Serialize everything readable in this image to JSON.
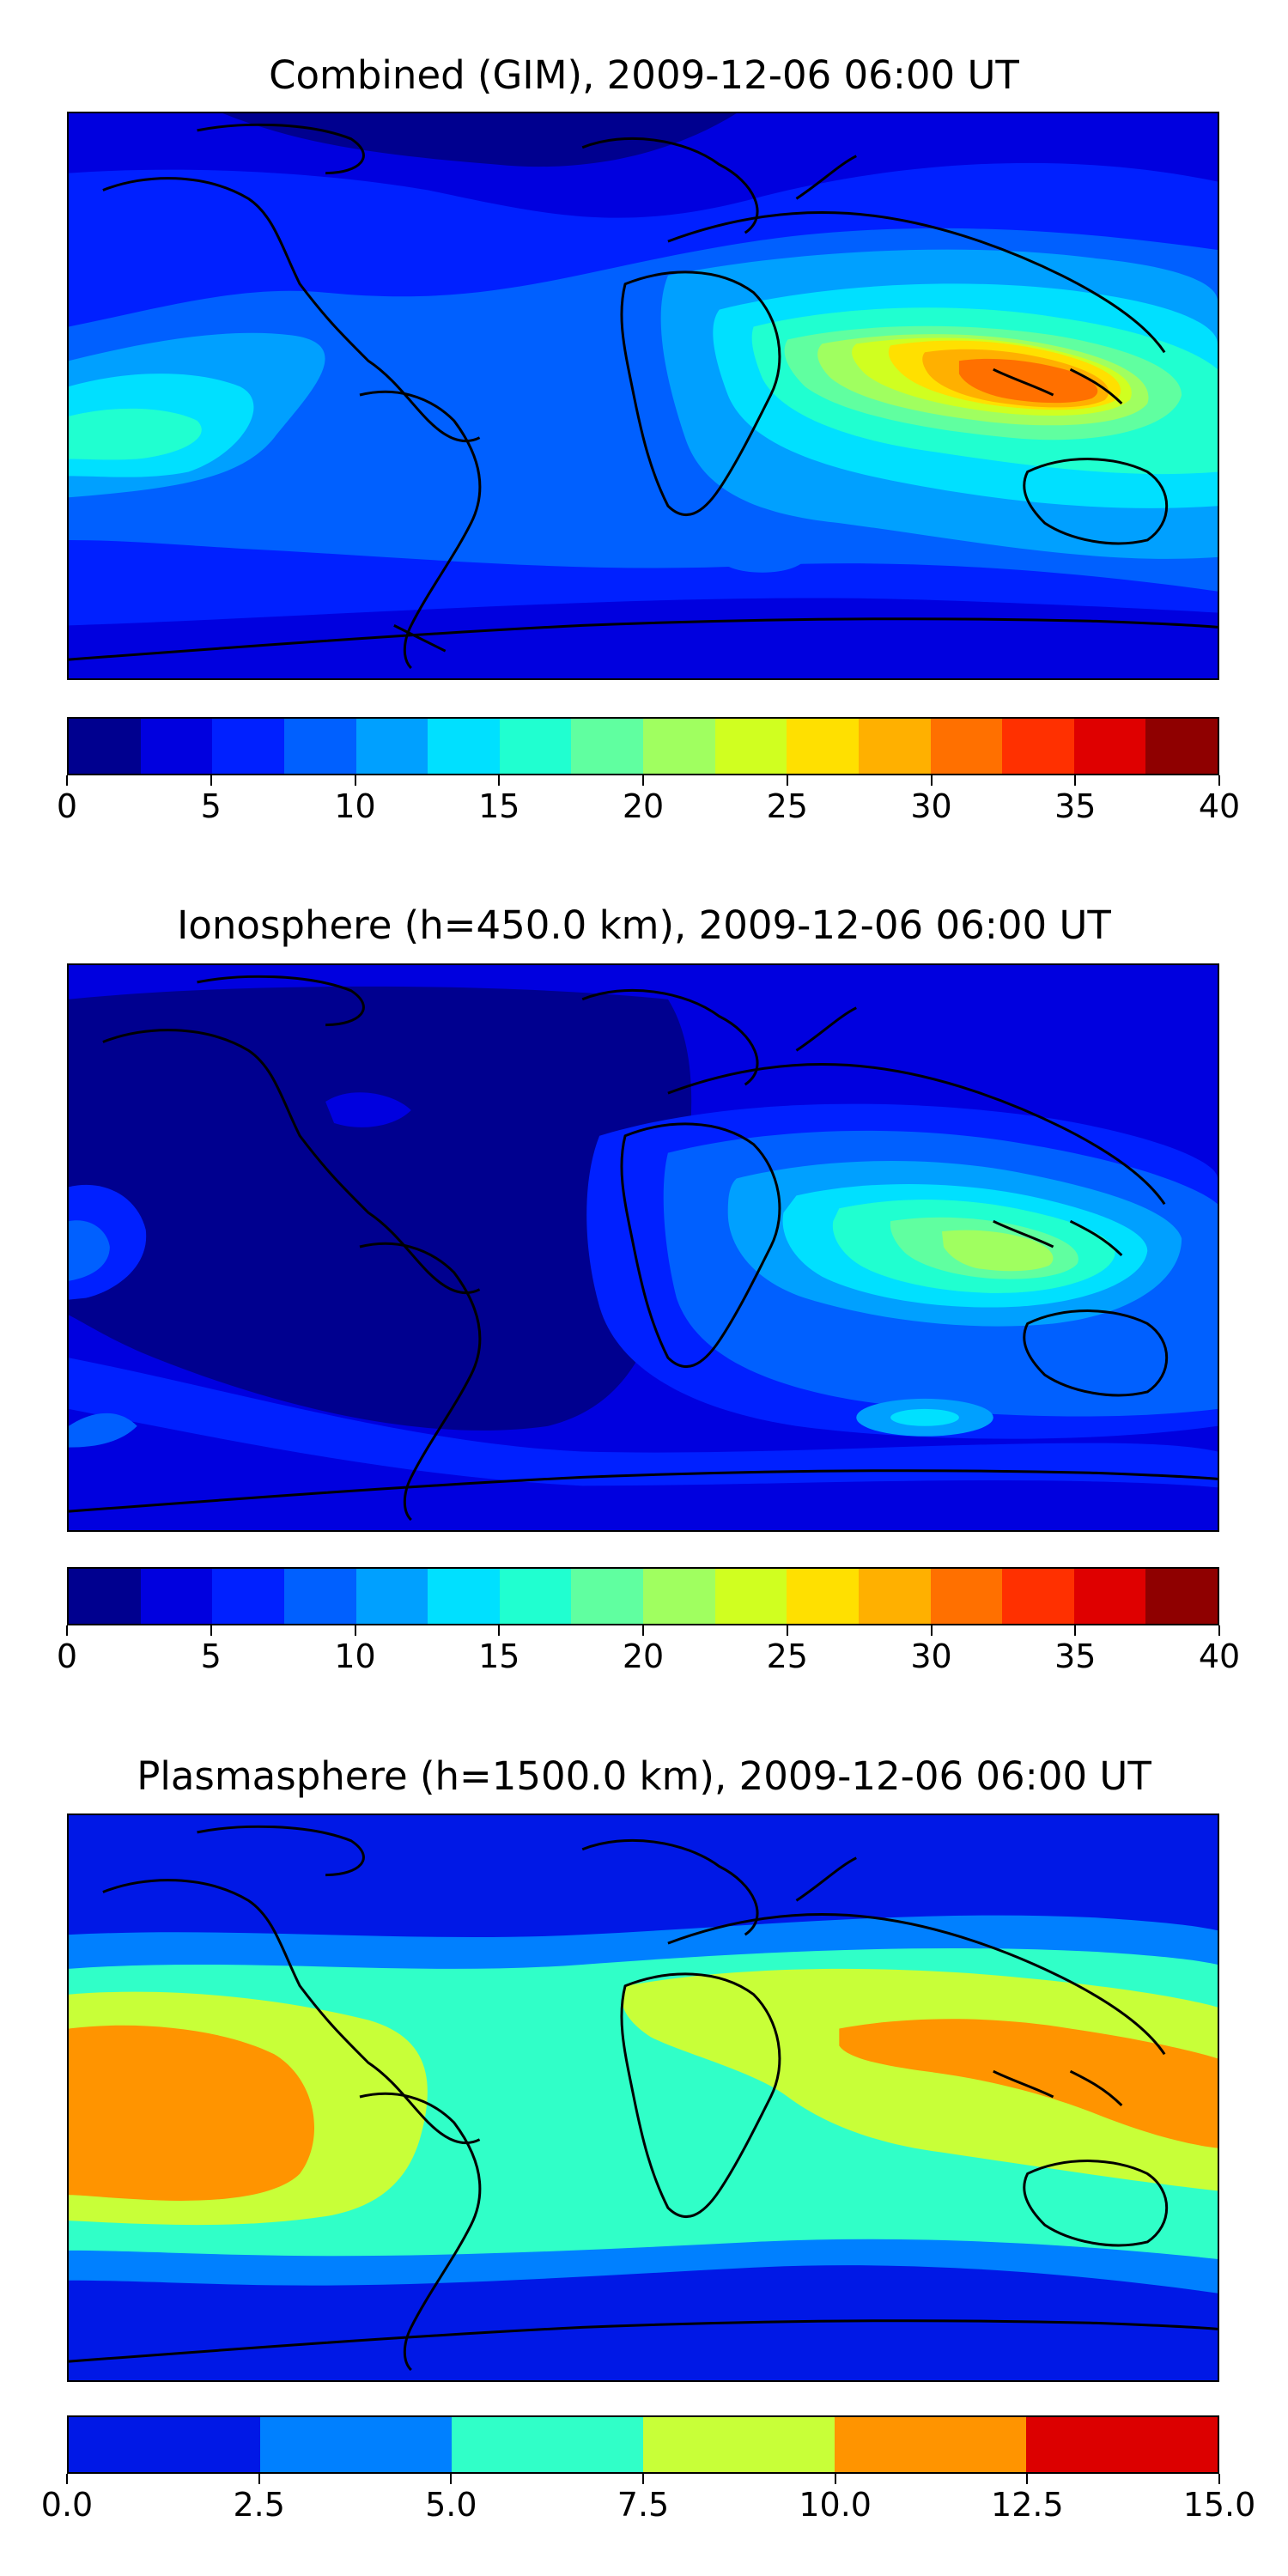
{
  "panels": [
    {
      "title": "Combined (GIM), 2009-12-06 06:00 UT",
      "colorbar": {
        "min": 0,
        "max": 40,
        "levels": 16,
        "ticks": [
          "0",
          "5",
          "10",
          "15",
          "20",
          "25",
          "30",
          "35",
          "40"
        ],
        "colors": [
          "#00008f",
          "#0000df",
          "#0020ff",
          "#0060ff",
          "#00a0ff",
          "#00e0ff",
          "#20ffd0",
          "#60ffa0",
          "#a0ff60",
          "#d0ff20",
          "#ffe000",
          "#ffb000",
          "#ff7000",
          "#ff3000",
          "#df0000",
          "#8f0000"
        ]
      }
    },
    {
      "title": "Ionosphere  (h=450.0 km), 2009-12-06 06:00 UT",
      "colorbar": {
        "min": 0,
        "max": 40,
        "levels": 16,
        "ticks": [
          "0",
          "5",
          "10",
          "15",
          "20",
          "25",
          "30",
          "35",
          "40"
        ],
        "colors": [
          "#00008f",
          "#0000df",
          "#0020ff",
          "#0060ff",
          "#00a0ff",
          "#00e0ff",
          "#20ffd0",
          "#60ffa0",
          "#a0ff60",
          "#d0ff20",
          "#ffe000",
          "#ffb000",
          "#ff7000",
          "#ff3000",
          "#df0000",
          "#8f0000"
        ]
      }
    },
    {
      "title": "Plasmasphere (h=1500.0 km), 2009-12-06 06:00 UT",
      "colorbar": {
        "min": 0,
        "max": 15,
        "levels": 6,
        "ticks": [
          "0.0",
          "2.5",
          "5.0",
          "7.5",
          "10.0",
          "12.5",
          "15.0"
        ],
        "colors": [
          "#0018e6",
          "#0080ff",
          "#30ffc8",
          "#c8ff38",
          "#ff9400",
          "#dc0000"
        ]
      }
    }
  ]
}
